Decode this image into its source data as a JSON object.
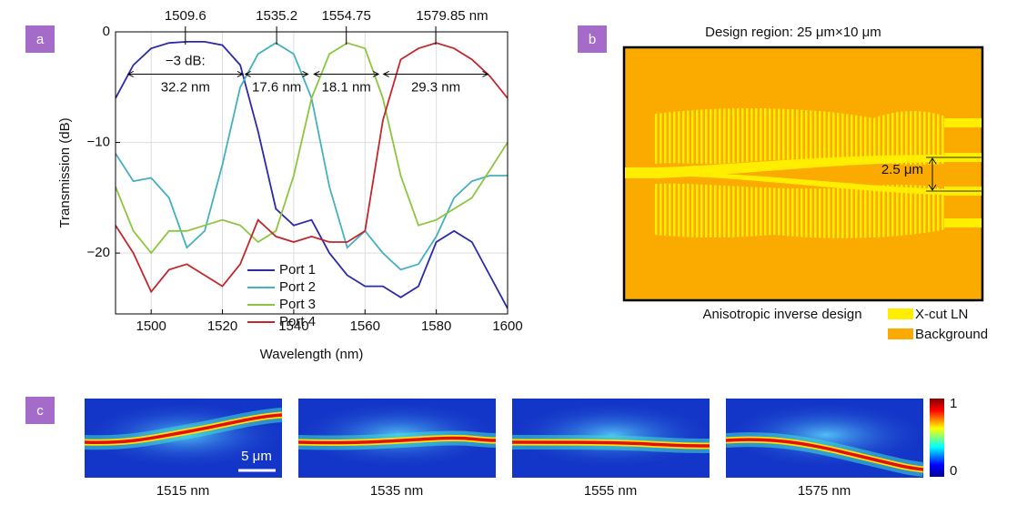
{
  "panel_labels": [
    "a",
    "b",
    "c"
  ],
  "chart_data": {
    "type": "line",
    "x_label": "Wavelength (nm)",
    "y_label": "Transmission (dB)",
    "x": [
      1490,
      1495,
      1500,
      1505,
      1510,
      1515,
      1520,
      1525,
      1530,
      1535,
      1540,
      1545,
      1550,
      1555,
      1560,
      1565,
      1570,
      1575,
      1580,
      1585,
      1590,
      1595,
      1600
    ],
    "series": [
      {
        "name": "Port 1",
        "color": "#2b2ba8",
        "values": [
          -6,
          -3,
          -1.5,
          -1,
          -0.9,
          -0.9,
          -1.2,
          -3,
          -9,
          -16,
          -17.5,
          -17,
          -20,
          -22,
          -23,
          -23,
          -24,
          -23,
          -19,
          -18,
          -19,
          -22,
          -25
        ]
      },
      {
        "name": "Port 2",
        "color": "#45b0c0",
        "values": [
          -11,
          -13.5,
          -13.2,
          -15,
          -19.5,
          -18,
          -12,
          -5,
          -2,
          -1,
          -2,
          -6,
          -14,
          -19.5,
          -18,
          -20,
          -21.5,
          -21,
          -18.5,
          -15,
          -13.5,
          -13,
          -13
        ]
      },
      {
        "name": "Port 3",
        "color": "#8cc63f",
        "values": [
          -14,
          -18,
          -20,
          -18,
          -18,
          -17.5,
          -17,
          -17.5,
          -19,
          -18,
          -13,
          -6,
          -2,
          -1,
          -1.5,
          -6,
          -13,
          -17.5,
          -17,
          -16,
          -15,
          -12.5,
          -10
        ]
      },
      {
        "name": "Port 4",
        "color": "#c0282d",
        "values": [
          -17.5,
          -20,
          -23.5,
          -21.5,
          -21,
          -22,
          -23,
          -21,
          -17,
          -18.5,
          -19,
          -18.5,
          -19,
          -19,
          -18,
          -8,
          -2.5,
          -1.5,
          -1,
          -1.5,
          -2.5,
          -4,
          -6
        ]
      }
    ],
    "xlim": [
      1490,
      1600
    ],
    "xticks": [
      1500,
      1520,
      1540,
      1560,
      1580,
      1600
    ],
    "ylim": [
      -25.5,
      0
    ],
    "yticks": [
      0,
      {
        "value": -10,
        "label": "−10"
      },
      {
        "value": -20,
        "label": "−20"
      }
    ],
    "grid": true,
    "legend": "lower center",
    "peaks": [
      {
        "value": 1509.6,
        "label": "1509.6"
      },
      {
        "value": 1535.2,
        "label": "1535.2"
      },
      {
        "value": 1554.75,
        "label": "1554.75"
      },
      {
        "value": 1579.85,
        "label": "1579.85 nm"
      }
    ],
    "threshold": {
      "value": -3,
      "label": "−3 dB:"
    },
    "bandwidths": [
      {
        "value": 32.2,
        "label": "32.2 nm"
      },
      {
        "value": 17.6,
        "label": "17.6 nm"
      },
      {
        "value": 18.1,
        "label": "18.1 nm"
      },
      {
        "value": 29.3,
        "label": "29.3 nm"
      }
    ]
  },
  "design": {
    "title": "Design region: 25 μm×10 μm",
    "gap_label": "2.5 μm",
    "caption": "Anisotropic inverse design",
    "legend": [
      {
        "name": "X-cut LN",
        "color": "#ffee00"
      },
      {
        "name": "Background",
        "color": "#fbab00"
      }
    ]
  },
  "field_maps": {
    "wavelengths": [
      "1515 nm",
      "1535 nm",
      "1555 nm",
      "1575 nm"
    ],
    "scale_bar": "5 μm",
    "colorbar_ticks": [
      "1",
      "0"
    ]
  }
}
